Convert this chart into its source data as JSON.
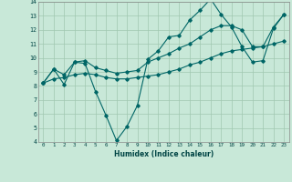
{
  "xlabel": "Humidex (Indice chaleur)",
  "ylabel": "",
  "xlim": [
    -0.5,
    23.5
  ],
  "ylim": [
    4,
    14
  ],
  "yticks": [
    4,
    5,
    6,
    7,
    8,
    9,
    10,
    11,
    12,
    13,
    14
  ],
  "xticks": [
    0,
    1,
    2,
    3,
    4,
    5,
    6,
    7,
    8,
    9,
    10,
    11,
    12,
    13,
    14,
    15,
    16,
    17,
    18,
    19,
    20,
    21,
    22,
    23
  ],
  "bg_color": "#c8e8d8",
  "line_color": "#006666",
  "grid_color": "#a0c8b0",
  "series": [
    {
      "x": [
        0,
        1,
        2,
        3,
        4,
        5,
        6,
        7,
        8,
        9,
        10,
        11,
        12,
        13,
        14,
        15,
        16,
        17,
        18,
        19,
        20,
        21,
        22,
        23
      ],
      "y": [
        8.2,
        9.2,
        8.1,
        9.7,
        9.6,
        7.6,
        5.9,
        4.1,
        5.1,
        6.6,
        9.9,
        10.5,
        11.5,
        11.6,
        12.7,
        13.4,
        14.2,
        13.1,
        12.2,
        10.8,
        9.7,
        9.8,
        12.1,
        13.1
      ]
    },
    {
      "x": [
        0,
        1,
        2,
        3,
        4,
        5,
        6,
        7,
        8,
        9,
        10,
        11,
        12,
        13,
        14,
        15,
        16,
        17,
        18,
        19,
        20,
        21,
        22,
        23
      ],
      "y": [
        8.2,
        9.2,
        8.8,
        9.7,
        9.8,
        9.3,
        9.1,
        8.9,
        9.0,
        9.1,
        9.7,
        10.0,
        10.3,
        10.7,
        11.0,
        11.5,
        12.0,
        12.3,
        12.3,
        12.0,
        10.8,
        10.8,
        12.2,
        13.1
      ]
    },
    {
      "x": [
        0,
        1,
        2,
        3,
        4,
        5,
        6,
        7,
        8,
        9,
        10,
        11,
        12,
        13,
        14,
        15,
        16,
        17,
        18,
        19,
        20,
        21,
        22,
        23
      ],
      "y": [
        8.2,
        8.5,
        8.6,
        8.8,
        8.9,
        8.8,
        8.6,
        8.5,
        8.5,
        8.6,
        8.7,
        8.8,
        9.0,
        9.2,
        9.5,
        9.7,
        10.0,
        10.3,
        10.5,
        10.6,
        10.7,
        10.8,
        11.0,
        11.2
      ]
    }
  ]
}
